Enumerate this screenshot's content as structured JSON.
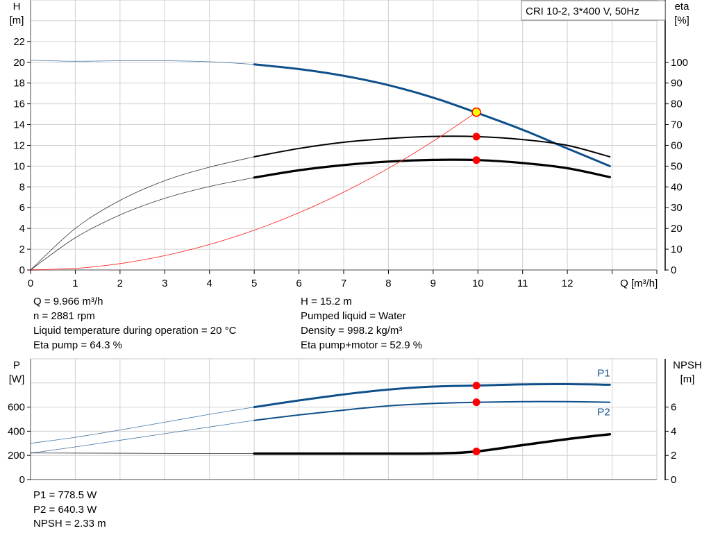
{
  "chart_data": [
    {
      "type": "line",
      "legend_box": "CRI 10-2, 3*400 V, 50Hz",
      "xlabel": "Q [m³/h]",
      "ylabel": "H",
      "ylabel_unit": "[m]",
      "y2label": "eta",
      "y2label_unit": "[%]",
      "xlim": [
        0,
        14
      ],
      "ylim": [
        0,
        26
      ],
      "y2lim": [
        0,
        130
      ],
      "x_ticks": [
        "0",
        "1",
        "2",
        "3",
        "4",
        "5",
        "6",
        "7",
        "8",
        "9",
        "10",
        "11",
        "12"
      ],
      "y_ticks": [
        "0",
        "2",
        "4",
        "6",
        "8",
        "10",
        "12",
        "14",
        "16",
        "18",
        "20",
        "22"
      ],
      "y2_ticks": [
        "0",
        "10",
        "20",
        "30",
        "40",
        "50",
        "60",
        "70",
        "80",
        "90",
        "100"
      ],
      "grid": true,
      "series": [
        {
          "id": "H",
          "axis": "left",
          "color": "#0f4f8a",
          "x": [
            0,
            1,
            2,
            3,
            4,
            5,
            6,
            7,
            8,
            9,
            10,
            11,
            12,
            12.95
          ],
          "y": [
            20.2,
            20.1,
            20.15,
            20.15,
            20.05,
            19.8,
            19.35,
            18.7,
            17.8,
            16.6,
            15.1,
            13.5,
            11.7,
            10.0
          ]
        },
        {
          "id": "eta_pump",
          "axis": "right",
          "color": "#000000",
          "x": [
            0,
            1,
            2,
            3,
            4,
            5,
            6,
            7,
            8,
            9,
            10,
            11,
            12,
            12.95
          ],
          "y": [
            0,
            20,
            33.5,
            43,
            49.5,
            54.5,
            58.5,
            61.5,
            63.3,
            64.3,
            64.2,
            62.8,
            60,
            54.5
          ]
        },
        {
          "id": "eta_pump_motor",
          "axis": "right",
          "color": "#000000",
          "x": [
            0,
            1,
            2,
            3,
            4,
            5,
            6,
            7,
            8,
            9,
            10,
            11,
            12,
            12.95
          ],
          "y": [
            0,
            15.5,
            26.5,
            34.5,
            40.2,
            44.5,
            48,
            50.5,
            52.2,
            53,
            52.9,
            51.5,
            49,
            44.7
          ]
        },
        {
          "id": "system_curve",
          "axis": "left",
          "color": "#ff3030",
          "x": [
            0,
            1,
            2,
            3,
            4,
            5,
            6,
            7,
            8,
            9,
            9.966
          ],
          "y": [
            0,
            0.15,
            0.61,
            1.38,
            2.45,
            3.83,
            5.51,
            7.5,
            9.79,
            12.4,
            15.2
          ]
        }
      ],
      "duty_point": {
        "Q": 9.966,
        "H": 15.2,
        "eta_pump": 64.3,
        "eta_pump_motor": 52.9
      }
    },
    {
      "type": "line",
      "ylabel": "P",
      "ylabel_unit": "[W]",
      "y2label": "NPSH",
      "y2label_unit": "[m]",
      "xlim": [
        0,
        14
      ],
      "ylim": [
        0,
        1000
      ],
      "y2lim": [
        0,
        10
      ],
      "y_ticks": [
        "0",
        "200",
        "400",
        "600"
      ],
      "y2_ticks": [
        "0",
        "2",
        "4",
        "6"
      ],
      "grid": true,
      "series": [
        {
          "id": "P1",
          "name": "P1",
          "axis": "left",
          "color": "#0f4f8a",
          "x": [
            0,
            1,
            2,
            3,
            4,
            5,
            6,
            7,
            8,
            9,
            10,
            11,
            12,
            12.95
          ],
          "y": [
            300,
            350,
            410,
            475,
            540,
            600,
            655,
            705,
            745,
            770,
            778.5,
            788,
            790,
            785
          ]
        },
        {
          "id": "P2",
          "name": "P2",
          "axis": "left",
          "color": "#0f4f8a",
          "x": [
            0,
            1,
            2,
            3,
            4,
            5,
            6,
            7,
            8,
            9,
            10,
            11,
            12,
            12.95
          ],
          "y": [
            218,
            270,
            325,
            380,
            435,
            490,
            535,
            575,
            610,
            630,
            640.3,
            645,
            645,
            640
          ]
        },
        {
          "id": "NPSH",
          "axis": "right",
          "color": "#000000",
          "x": [
            0,
            2,
            4,
            5,
            7,
            9,
            9.966,
            11,
            12,
            12.95
          ],
          "y": [
            2.2,
            2.18,
            2.15,
            2.15,
            2.15,
            2.16,
            2.33,
            2.85,
            3.35,
            3.75
          ]
        }
      ],
      "duty_point": {
        "Q": 9.966,
        "P1": 778.5,
        "P2": 640.3,
        "NPSH": 2.33
      }
    }
  ],
  "info_top": {
    "left": [
      "Q = 9.966 m³/h",
      "n = 2881 rpm",
      "Liquid temperature during operation = 20 °C",
      "Eta pump = 64.3 %"
    ],
    "right": [
      "H = 15.2 m",
      "Pumped liquid = Water",
      "Density = 998.2 kg/m³",
      "Eta pump+motor = 52.9 %"
    ]
  },
  "info_bottom": [
    "P1 = 778.5 W",
    "P2 = 640.3 W",
    "NPSH = 2.33 m"
  ],
  "colors": {
    "grid": "#d0d0d0",
    "curve_blue": "#0f4f8a",
    "duty_point": "#ff0000",
    "duty_point_highlight": "#ffff00"
  }
}
